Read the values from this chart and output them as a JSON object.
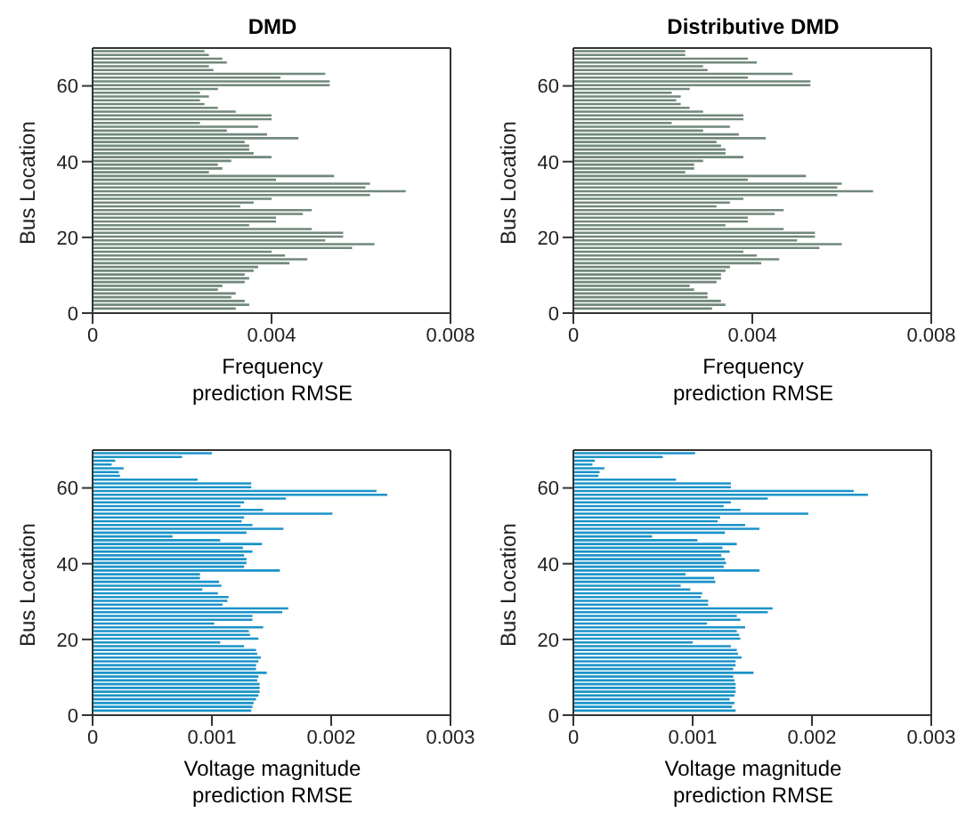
{
  "chart_data": [
    {
      "type": "bar",
      "orientation": "horizontal",
      "title": "DMD",
      "xlabel": "Frequency prediction RMSE",
      "ylabel": "Bus Location",
      "xlim": [
        0,
        0.008
      ],
      "xticks": [
        0,
        0.004,
        0.008
      ],
      "ylim": [
        0,
        70
      ],
      "yticks": [
        0,
        20,
        40,
        60
      ],
      "x": [
        1,
        2,
        3,
        4,
        5,
        6,
        7,
        8,
        9,
        10,
        11,
        12,
        13,
        14,
        15,
        16,
        17,
        18,
        19,
        20,
        21,
        22,
        23,
        24,
        25,
        26,
        27,
        28,
        29,
        30,
        31,
        32,
        33,
        34,
        35,
        36,
        37,
        38,
        39,
        40,
        41,
        42,
        43,
        44,
        45,
        46,
        47,
        48,
        49,
        50,
        51,
        52,
        53,
        54,
        55,
        56,
        57,
        58,
        59,
        60,
        61,
        62,
        63,
        64,
        65,
        66,
        67,
        68,
        69
      ],
      "series": [
        {
          "color": "#71887b",
          "values": [
            0.0032,
            0.0035,
            0.0034,
            0.0031,
            0.0032,
            0.0028,
            0.0029,
            0.0034,
            0.0035,
            0.0034,
            0.0036,
            0.0037,
            0.0044,
            0.0048,
            0.0043,
            0.004,
            0.0058,
            0.0063,
            0.0052,
            0.0056,
            0.0056,
            0.0049,
            0.0035,
            0.0041,
            0.0041,
            0.0047,
            0.0049,
            0.0033,
            0.0036,
            0.004,
            0.0062,
            0.007,
            0.0061,
            0.0062,
            0.0041,
            0.0054,
            0.0026,
            0.0029,
            0.0028,
            0.0031,
            0.004,
            0.0036,
            0.0035,
            0.0035,
            0.0034,
            0.0046,
            0.0039,
            0.003,
            0.0037,
            0.0024,
            0.004,
            0.004,
            0.0032,
            0.0028,
            0.0025,
            0.0024,
            0.0026,
            0.0024,
            0.0028,
            0.0053,
            0.0053,
            0.0042,
            0.0052,
            0.0027,
            0.0026,
            0.003,
            0.0029,
            0.0026,
            0.0025
          ]
        }
      ]
    },
    {
      "type": "bar",
      "orientation": "horizontal",
      "title": "Distributive DMD",
      "xlabel": "Frequency prediction RMSE",
      "ylabel": "Bus Location",
      "xlim": [
        0,
        0.008
      ],
      "xticks": [
        0,
        0.004,
        0.008
      ],
      "ylim": [
        0,
        70
      ],
      "yticks": [
        0,
        20,
        40,
        60
      ],
      "x": [
        1,
        2,
        3,
        4,
        5,
        6,
        7,
        8,
        9,
        10,
        11,
        12,
        13,
        14,
        15,
        16,
        17,
        18,
        19,
        20,
        21,
        22,
        23,
        24,
        25,
        26,
        27,
        28,
        29,
        30,
        31,
        32,
        33,
        34,
        35,
        36,
        37,
        38,
        39,
        40,
        41,
        42,
        43,
        44,
        45,
        46,
        47,
        48,
        49,
        50,
        51,
        52,
        53,
        54,
        55,
        56,
        57,
        58,
        59,
        60,
        61,
        62,
        63,
        64,
        65,
        66,
        67,
        68,
        69
      ],
      "series": [
        {
          "color": "#71887b",
          "values": [
            0.0031,
            0.0034,
            0.0033,
            0.003,
            0.003,
            0.0027,
            0.0026,
            0.0032,
            0.0033,
            0.0033,
            0.0034,
            0.0035,
            0.0042,
            0.0046,
            0.0041,
            0.0038,
            0.0055,
            0.006,
            0.005,
            0.0054,
            0.0054,
            0.0047,
            0.0034,
            0.0039,
            0.0039,
            0.0045,
            0.0047,
            0.0032,
            0.0035,
            0.0038,
            0.0059,
            0.0067,
            0.0059,
            0.006,
            0.0039,
            0.0052,
            0.0025,
            0.0027,
            0.0027,
            0.0029,
            0.0038,
            0.0034,
            0.0034,
            0.0033,
            0.0032,
            0.0043,
            0.0037,
            0.0029,
            0.0035,
            0.0022,
            0.0038,
            0.0038,
            0.0029,
            0.0026,
            0.0024,
            0.0023,
            0.0024,
            0.0022,
            0.0026,
            0.0053,
            0.0053,
            0.0039,
            0.0049,
            0.003,
            0.0029,
            0.0041,
            0.0039,
            0.0025,
            0.0025
          ]
        }
      ]
    },
    {
      "type": "bar",
      "orientation": "horizontal",
      "xlabel": "Voltage magnitude prediction RMSE",
      "ylabel": "Bus Location",
      "xlim": [
        0,
        0.003
      ],
      "xticks": [
        0,
        0.001,
        0.002,
        0.003
      ],
      "ylim": [
        0,
        70
      ],
      "yticks": [
        0,
        20,
        40,
        60
      ],
      "x": [
        1,
        2,
        3,
        4,
        5,
        6,
        7,
        8,
        9,
        10,
        11,
        12,
        13,
        14,
        15,
        16,
        17,
        18,
        19,
        20,
        21,
        22,
        23,
        24,
        25,
        26,
        27,
        28,
        29,
        30,
        31,
        32,
        33,
        34,
        35,
        36,
        37,
        38,
        39,
        40,
        41,
        42,
        43,
        44,
        45,
        46,
        47,
        48,
        49,
        50,
        51,
        52,
        53,
        54,
        55,
        56,
        57,
        58,
        59,
        60,
        61,
        62,
        63,
        64,
        65,
        66,
        67,
        68,
        69
      ],
      "series": [
        {
          "color": "#1b93c8",
          "values": [
            0.00133,
            0.00134,
            0.00135,
            0.00137,
            0.00139,
            0.0014,
            0.0014,
            0.0014,
            0.00138,
            0.00139,
            0.00146,
            0.00137,
            0.00137,
            0.00139,
            0.00141,
            0.00138,
            0.00137,
            0.00127,
            0.00107,
            0.00139,
            0.00132,
            0.00131,
            0.00143,
            0.00102,
            0.00134,
            0.00134,
            0.00159,
            0.00164,
            0.00109,
            0.00113,
            0.00114,
            0.00105,
            0.00092,
            0.00108,
            0.00106,
            0.0009,
            0.0009,
            0.00157,
            0.00127,
            0.00129,
            0.00129,
            0.00127,
            0.00134,
            0.00126,
            0.00142,
            0.00107,
            0.00067,
            0.00129,
            0.0016,
            0.00134,
            0.00125,
            0.00127,
            0.00201,
            0.00143,
            0.00124,
            0.00127,
            0.00162,
            0.00247,
            0.00238,
            0.00133,
            0.00133,
            0.00088,
            0.00023,
            0.00022,
            0.00026,
            0.00016,
            0.00019,
            0.00075,
            0.001
          ]
        }
      ]
    },
    {
      "type": "bar",
      "orientation": "horizontal",
      "xlabel": "Voltage magnitude prediction RMSE",
      "ylabel": "Bus Location",
      "xlim": [
        0,
        0.003
      ],
      "xticks": [
        0,
        0.001,
        0.002,
        0.003
      ],
      "ylim": [
        0,
        70
      ],
      "yticks": [
        0,
        20,
        40,
        60
      ],
      "x": [
        1,
        2,
        3,
        4,
        5,
        6,
        7,
        8,
        9,
        10,
        11,
        12,
        13,
        14,
        15,
        16,
        17,
        18,
        19,
        20,
        21,
        22,
        23,
        24,
        25,
        26,
        27,
        28,
        29,
        30,
        31,
        32,
        33,
        34,
        35,
        36,
        37,
        38,
        39,
        40,
        41,
        42,
        43,
        44,
        45,
        46,
        47,
        48,
        49,
        50,
        51,
        52,
        53,
        54,
        55,
        56,
        57,
        58,
        59,
        60,
        61,
        62,
        63,
        64,
        65,
        66,
        67,
        68,
        69
      ],
      "series": [
        {
          "color": "#1b93c8",
          "values": [
            0.00136,
            0.00133,
            0.00135,
            0.00131,
            0.00135,
            0.00136,
            0.00136,
            0.00136,
            0.00135,
            0.00134,
            0.00151,
            0.00134,
            0.00136,
            0.00136,
            0.00141,
            0.00138,
            0.00137,
            0.00132,
            0.001,
            0.0014,
            0.00139,
            0.00137,
            0.00144,
            0.00112,
            0.0014,
            0.00137,
            0.00163,
            0.00167,
            0.00113,
            0.00113,
            0.00107,
            0.00108,
            0.00098,
            0.0009,
            0.00119,
            0.00118,
            0.00094,
            0.00156,
            0.00126,
            0.00128,
            0.00127,
            0.00124,
            0.00131,
            0.00125,
            0.00137,
            0.00104,
            0.00066,
            0.00127,
            0.00156,
            0.00144,
            0.00121,
            0.00123,
            0.00197,
            0.0014,
            0.00126,
            0.00132,
            0.00163,
            0.00247,
            0.00235,
            0.00132,
            0.00132,
            0.00086,
            0.00021,
            0.00022,
            0.00026,
            0.00016,
            0.00018,
            0.00075,
            0.00102
          ]
        }
      ]
    }
  ]
}
